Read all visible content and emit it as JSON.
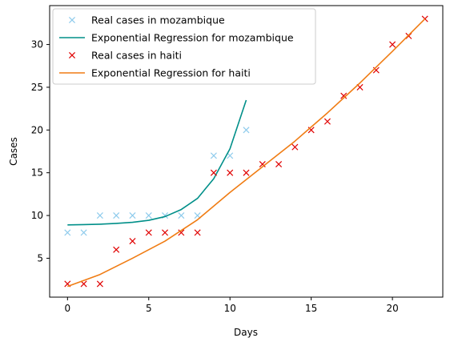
{
  "chart_data": {
    "type": "line",
    "title": "",
    "xlabel": "Days",
    "ylabel": "Cases",
    "xlim": [
      -1.1,
      23.1
    ],
    "ylim": [
      0.45,
      34.55
    ],
    "xticks": [
      0,
      5,
      10,
      15,
      20
    ],
    "yticks": [
      5,
      10,
      15,
      20,
      25,
      30
    ],
    "grid": false,
    "legend_position": "top-left",
    "series": [
      {
        "name": "Real cases in mozambique",
        "kind": "scatter",
        "marker": "x",
        "color": "#8ecbec",
        "x": [
          0,
          1,
          2,
          3,
          4,
          5,
          6,
          7,
          8,
          9,
          10,
          11
        ],
        "y": [
          8,
          8,
          10,
          10,
          10,
          10,
          10,
          10,
          10,
          17,
          17,
          20
        ]
      },
      {
        "name": "Exponential Regression for mozambique",
        "kind": "line",
        "color": "#008f89",
        "x": [
          0,
          1,
          2,
          3,
          4,
          5,
          6,
          7,
          8,
          9,
          10,
          11
        ],
        "y": [
          8.9,
          8.93,
          8.98,
          9.07,
          9.2,
          9.44,
          9.87,
          10.7,
          12.0,
          14.3,
          17.8,
          23.5
        ]
      },
      {
        "name": "Real cases in haiti",
        "kind": "scatter",
        "marker": "x",
        "color": "#e00000",
        "x": [
          0,
          1,
          2,
          3,
          4,
          5,
          6,
          7,
          8,
          9,
          10,
          11,
          12,
          13,
          14,
          15,
          16,
          17,
          18,
          19,
          20,
          21,
          22
        ],
        "y": [
          2,
          2,
          2,
          6,
          7,
          8,
          8,
          8,
          8,
          15,
          15,
          15,
          16,
          16,
          18,
          20,
          21,
          24,
          25,
          27,
          30,
          31,
          33
        ]
      },
      {
        "name": "Exponential Regression for haiti",
        "kind": "line",
        "color": "#f07c13",
        "x": [
          0,
          2,
          4,
          6,
          8,
          10,
          12,
          14,
          16,
          18,
          20,
          22
        ],
        "y": [
          1.7,
          3.1,
          5.0,
          7.0,
          9.5,
          12.7,
          15.7,
          18.7,
          22.0,
          25.5,
          29.2,
          33.0
        ]
      }
    ]
  }
}
